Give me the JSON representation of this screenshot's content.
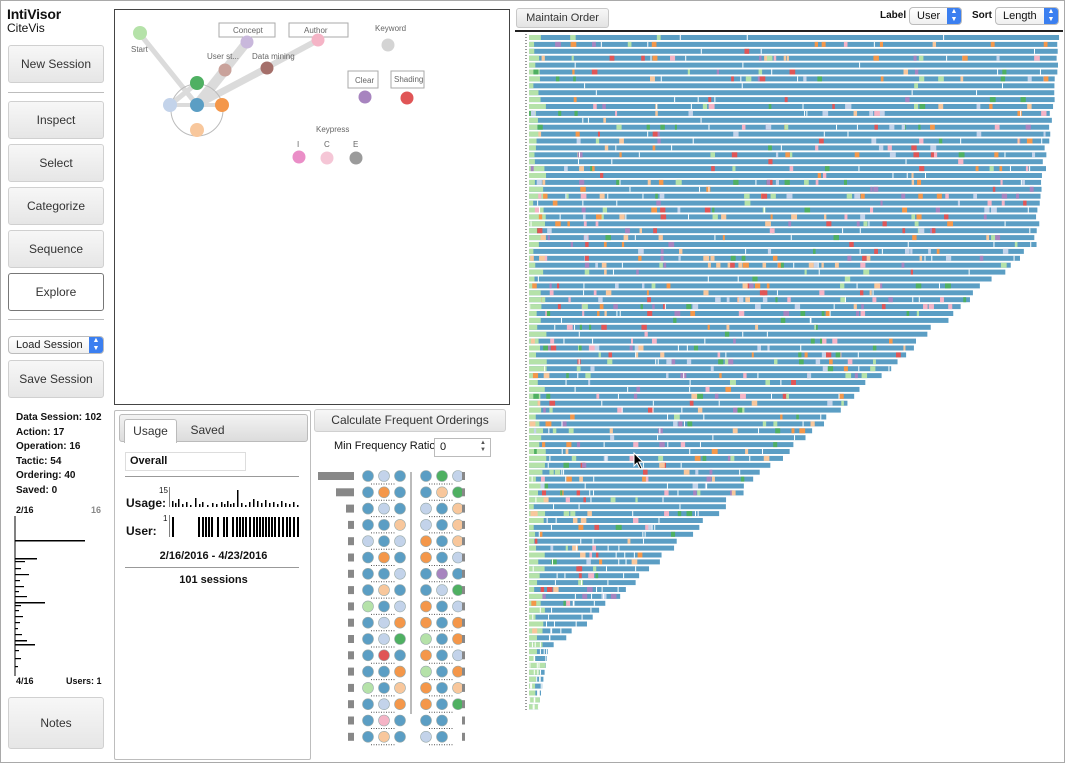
{
  "app": {
    "title": "IntiVisor",
    "subtitle": "CiteVis"
  },
  "sidebar": {
    "new_session": "New Session",
    "inspect": "Inspect",
    "select": "Select",
    "categorize": "Categorize",
    "sequence": "Sequence",
    "explore": "Explore",
    "load_session": "Load Session",
    "save_session": "Save Session",
    "notes": "Notes",
    "stats": {
      "data_session": "Data Session: 102",
      "action": "Action: 17",
      "operation": "Operation: 16",
      "tactic": "Tactic: 54",
      "ordering": "Ordering: 40",
      "saved": "Saved: 0"
    },
    "mini_chart": {
      "top_left": "2/16",
      "top_right": "16",
      "bottom_left": "4/16",
      "users": "Users: 1"
    }
  },
  "graph": {
    "nodes": {
      "start": "Start",
      "concept": "Concept",
      "author": "Author",
      "keyword": "Keyword",
      "user_study": "User st...",
      "data_mining": "Data mining",
      "clear": "Clear",
      "shading": "Shading",
      "keypress": "Keypress",
      "key_i": "I",
      "key_c": "C",
      "key_e": "E"
    }
  },
  "usage_panel": {
    "tabs": [
      "Usage",
      "Saved"
    ],
    "overall": "Overall",
    "usage_label": "Usage:",
    "user_label": "User:",
    "usage_max": "15",
    "user_max": "1",
    "date_range": "2/16/2016 - 4/23/2016",
    "sessions": "101 sessions"
  },
  "frequent": {
    "button": "Calculate Frequent Orderings",
    "ratio_label": "Min Frequency Ratio",
    "ratio_value": "0"
  },
  "sequence_view": {
    "maintain_order": "Maintain Order",
    "label_caption": "Label",
    "label_value": "User",
    "sort_caption": "Sort",
    "sort_value": "Length"
  },
  "colors": {
    "blue": "#5b9ec4",
    "light_blue": "#c3d3ea",
    "orange": "#f4974a",
    "peach": "#f8c79c",
    "green": "#4fb062",
    "light_green": "#b5e2a9",
    "red": "#e05556",
    "pink": "#f5b4c6",
    "purple": "#a784bf",
    "gray": "#9b9b9b",
    "magenta": "#ea8ec7"
  }
}
